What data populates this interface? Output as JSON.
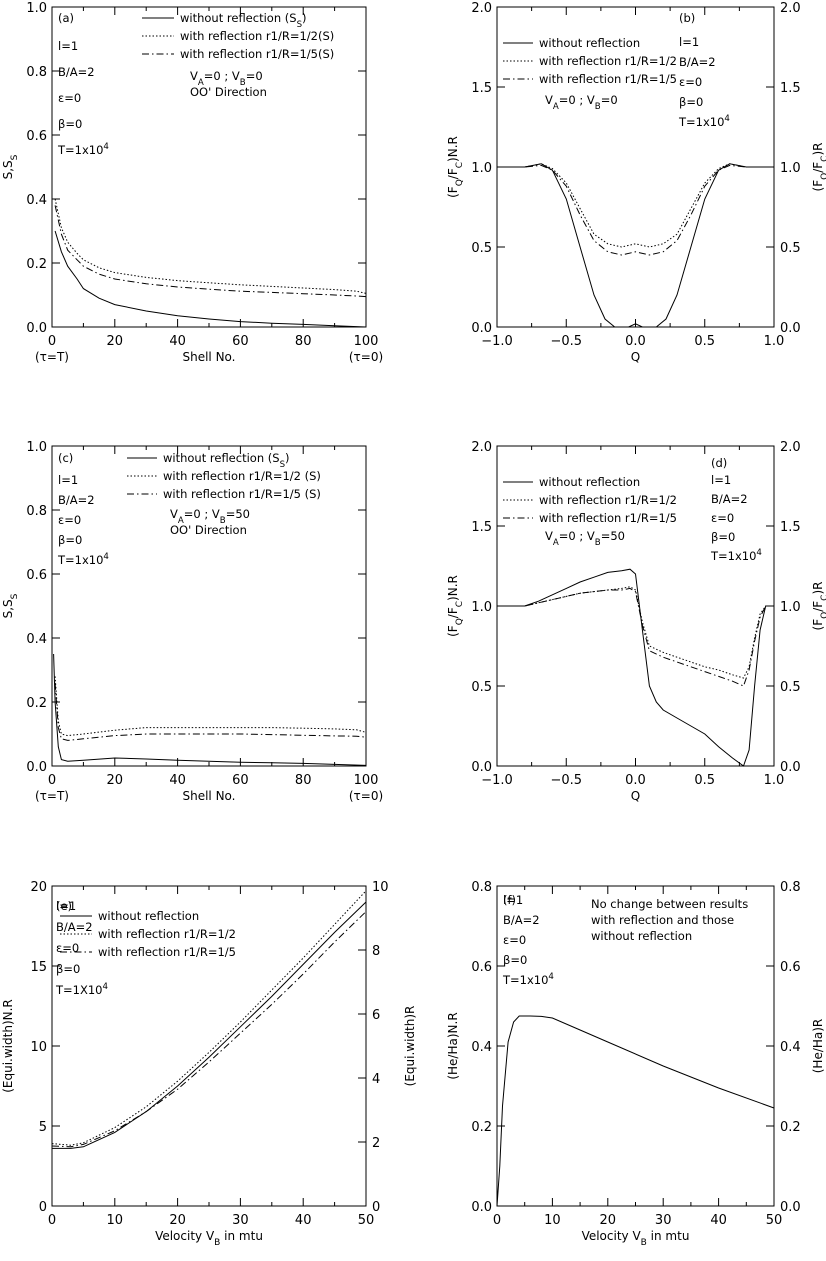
{
  "chart_data": [
    {
      "id": "a",
      "type": "line",
      "ylabel": "S,S_S",
      "xlabel": "Shell No.",
      "xlim": [
        0,
        100
      ],
      "ylim": [
        0,
        1.0
      ],
      "xticks": [
        0,
        20,
        40,
        60,
        80,
        100
      ],
      "xtick_labels": [
        "0",
        "20",
        "40",
        "60",
        "80",
        "100"
      ],
      "yticks": [
        0,
        0.2,
        0.4,
        0.6,
        0.8,
        1.0
      ],
      "ytick_labels": [
        "0.0",
        "0.2",
        "0.4",
        "0.6",
        "0.8",
        "1.0"
      ],
      "extra_labels": [
        {
          "x": 0,
          "text": "(τ=T)"
        },
        {
          "x": 100,
          "text": "(τ=0)"
        }
      ],
      "params": [
        "(a)",
        "l=1",
        "B/A=2",
        "ε=0",
        "β=0",
        "T=1x10⁴"
      ],
      "legend": [
        {
          "style": "solid",
          "text": "without reflection (S_S)"
        },
        {
          "style": "dotted",
          "text": "with reflection r1/R=1/2(S)"
        },
        {
          "style": "dashdot",
          "text": "with reflection r1/R=1/5(S)"
        }
      ],
      "notes": [
        "V_A=0 ; V_B=0",
        "OO' Direction"
      ],
      "series": [
        {
          "style": "solid",
          "x": [
            1,
            3,
            5,
            8,
            10,
            15,
            20,
            30,
            40,
            50,
            60,
            70,
            80,
            90,
            100
          ],
          "values": [
            0.3,
            0.235,
            0.19,
            0.15,
            0.12,
            0.09,
            0.07,
            0.05,
            0.035,
            0.025,
            0.017,
            0.012,
            0.008,
            0.004,
            0.0
          ]
        },
        {
          "style": "dotted",
          "x": [
            1,
            3,
            5,
            8,
            10,
            15,
            20,
            30,
            40,
            50,
            60,
            70,
            80,
            90,
            97,
            100
          ],
          "values": [
            0.4,
            0.31,
            0.265,
            0.23,
            0.21,
            0.185,
            0.17,
            0.155,
            0.145,
            0.138,
            0.132,
            0.127,
            0.122,
            0.117,
            0.112,
            0.105
          ]
        },
        {
          "style": "dashdot",
          "x": [
            1,
            3,
            5,
            8,
            10,
            15,
            20,
            30,
            40,
            50,
            60,
            70,
            80,
            90,
            97,
            100
          ],
          "values": [
            0.38,
            0.29,
            0.24,
            0.21,
            0.19,
            0.165,
            0.15,
            0.135,
            0.125,
            0.118,
            0.112,
            0.108,
            0.104,
            0.1,
            0.097,
            0.095
          ]
        }
      ]
    },
    {
      "id": "b",
      "type": "line",
      "ylabel": "(F_Q/F_C)N.R",
      "ylabel_right": "(F_Q/F_C)R",
      "xlabel": "Q",
      "xlim": [
        -1.0,
        1.0
      ],
      "ylim": [
        0,
        2.0
      ],
      "xticks": [
        -1.0,
        -0.5,
        0,
        0.5,
        1.0
      ],
      "xtick_labels": [
        "−1.0",
        "−0.5",
        "0.0",
        "0.5",
        "1.0"
      ],
      "yticks": [
        0,
        0.5,
        1.0,
        1.5,
        2.0
      ],
      "ytick_labels": [
        "0.0",
        "0.5",
        "1.0",
        "1.5",
        "2.0"
      ],
      "right_ytick_labels": [
        "0.0",
        "0.5",
        "1.0",
        "1.5",
        "2.0"
      ],
      "params": [
        "(b)",
        "l=1",
        "B/A=2",
        "ε=0",
        "β=0",
        "T=1x10⁴"
      ],
      "legend": [
        {
          "style": "solid",
          "text": "without reflection"
        },
        {
          "style": "dotted",
          "text": "with reflection r1/R=1/2"
        },
        {
          "style": "dashdot",
          "text": "with reflection r1/R=1/5"
        }
      ],
      "notes": [
        "V_A=0 ; V_B=0"
      ],
      "series": [
        {
          "style": "solid",
          "x": [
            -1,
            -0.8,
            -0.68,
            -0.6,
            -0.5,
            -0.4,
            -0.3,
            -0.22,
            -0.15,
            -0.05,
            0,
            0.05,
            0.15,
            0.22,
            0.3,
            0.4,
            0.5,
            0.6,
            0.68,
            0.8,
            1
          ],
          "values": [
            1,
            1.0,
            1.02,
            0.98,
            0.8,
            0.5,
            0.2,
            0.05,
            0.0,
            0.0,
            0.02,
            0.0,
            0.0,
            0.05,
            0.2,
            0.5,
            0.8,
            0.98,
            1.02,
            1.0,
            1
          ]
        },
        {
          "style": "dotted",
          "x": [
            -1,
            -0.8,
            -0.68,
            -0.6,
            -0.5,
            -0.4,
            -0.3,
            -0.2,
            -0.1,
            0,
            0.1,
            0.2,
            0.3,
            0.4,
            0.5,
            0.6,
            0.68,
            0.8,
            1
          ],
          "values": [
            1,
            1.0,
            1.02,
            0.99,
            0.9,
            0.74,
            0.58,
            0.52,
            0.5,
            0.52,
            0.5,
            0.52,
            0.58,
            0.74,
            0.9,
            0.99,
            1.02,
            1.0,
            1
          ]
        },
        {
          "style": "dashdot",
          "x": [
            -1,
            -0.8,
            -0.68,
            -0.6,
            -0.5,
            -0.4,
            -0.3,
            -0.2,
            -0.1,
            0,
            0.1,
            0.2,
            0.3,
            0.4,
            0.5,
            0.6,
            0.68,
            0.8,
            1
          ],
          "values": [
            1,
            1.0,
            1.01,
            0.98,
            0.88,
            0.7,
            0.54,
            0.47,
            0.45,
            0.47,
            0.45,
            0.47,
            0.54,
            0.7,
            0.88,
            0.98,
            1.01,
            1.0,
            1
          ]
        }
      ]
    },
    {
      "id": "c",
      "type": "line",
      "ylabel": "S,S_S",
      "xlabel": "Shell No.",
      "xlim": [
        0,
        100
      ],
      "ylim": [
        0,
        1.0
      ],
      "xticks": [
        0,
        20,
        40,
        60,
        80,
        100
      ],
      "xtick_labels": [
        "0",
        "20",
        "40",
        "60",
        "80",
        "100"
      ],
      "yticks": [
        0,
        0.2,
        0.4,
        0.6,
        0.8,
        1.0
      ],
      "ytick_labels": [
        "0.0",
        "0.2",
        "0.4",
        "0.6",
        "0.8",
        "1.0"
      ],
      "extra_labels": [
        {
          "x": 0,
          "text": "(τ=T)"
        },
        {
          "x": 100,
          "text": "(τ=0)"
        }
      ],
      "params": [
        "(c)",
        "l=1",
        "B/A=2",
        "ε=0",
        "β=0",
        "T=1x10⁴"
      ],
      "legend": [
        {
          "style": "solid",
          "text": "without reflection (S_S)"
        },
        {
          "style": "dotted",
          "text": "with reflection r1/R=1/2 (S)"
        },
        {
          "style": "dashdot",
          "text": "with reflection r1/R=1/5 (S)"
        }
      ],
      "notes": [
        "V_A=0 ; V_B=50",
        "OO' Direction"
      ],
      "series": [
        {
          "style": "solid",
          "x": [
            0.5,
            1,
            2,
            3,
            5,
            10,
            20,
            30,
            40,
            50,
            60,
            70,
            80,
            90,
            100
          ],
          "values": [
            0.35,
            0.2,
            0.06,
            0.02,
            0.015,
            0.018,
            0.025,
            0.022,
            0.018,
            0.015,
            0.012,
            0.01,
            0.008,
            0.005,
            0.002
          ]
        },
        {
          "style": "dotted",
          "x": [
            1,
            2,
            3,
            5,
            10,
            20,
            30,
            40,
            50,
            60,
            70,
            80,
            90,
            97,
            100
          ],
          "values": [
            0.28,
            0.14,
            0.1,
            0.095,
            0.1,
            0.112,
            0.12,
            0.12,
            0.12,
            0.12,
            0.12,
            0.118,
            0.116,
            0.113,
            0.105
          ]
        },
        {
          "style": "dashdot",
          "x": [
            1,
            2,
            3,
            5,
            10,
            20,
            30,
            40,
            50,
            60,
            70,
            80,
            90,
            97,
            100
          ],
          "values": [
            0.26,
            0.12,
            0.085,
            0.08,
            0.085,
            0.095,
            0.1,
            0.1,
            0.1,
            0.1,
            0.098,
            0.096,
            0.094,
            0.093,
            0.09
          ]
        }
      ]
    },
    {
      "id": "d",
      "type": "line",
      "ylabel": "(F_Q/F_C)N.R",
      "ylabel_right": "(F_Q/F_C)R",
      "xlabel": "Q",
      "xlim": [
        -1.0,
        1.0
      ],
      "ylim": [
        0,
        2.0
      ],
      "xticks": [
        -1.0,
        -0.5,
        0,
        0.5,
        1.0
      ],
      "xtick_labels": [
        "−1.0",
        "−0.5",
        "0.0",
        "0.5",
        "1.0"
      ],
      "yticks": [
        0,
        0.5,
        1.0,
        1.5,
        2.0
      ],
      "ytick_labels": [
        "0.0",
        "0.5",
        "1.0",
        "1.5",
        "2.0"
      ],
      "right_ytick_labels": [
        "0.0",
        "0.5",
        "1.0",
        "1.5",
        "2.0"
      ],
      "params": [
        "(d)",
        "l=1",
        "B/A=2",
        "ε=0",
        "β=0",
        "T=1x10⁴"
      ],
      "legend": [
        {
          "style": "solid",
          "text": "without reflection"
        },
        {
          "style": "dotted",
          "text": "with reflection r1/R=1/2"
        },
        {
          "style": "dashdot",
          "text": "with reflection r1/R=1/5"
        }
      ],
      "notes": [
        "V_A=0 ; V_B=50"
      ],
      "series": [
        {
          "style": "solid",
          "x": [
            -1,
            -0.8,
            -0.7,
            -0.6,
            -0.5,
            -0.4,
            -0.3,
            -0.2,
            -0.1,
            -0.04,
            0,
            0.05,
            0.1,
            0.15,
            0.2,
            0.3,
            0.4,
            0.5,
            0.6,
            0.7,
            0.78,
            0.82,
            0.86,
            0.9,
            0.94,
            1
          ],
          "values": [
            1,
            1,
            1.03,
            1.07,
            1.11,
            1.15,
            1.18,
            1.21,
            1.22,
            1.23,
            1.2,
            0.85,
            0.5,
            0.4,
            0.35,
            0.3,
            0.25,
            0.2,
            0.12,
            0.05,
            0.0,
            0.1,
            0.5,
            0.85,
            1.0,
            1.0
          ]
        },
        {
          "style": "dotted",
          "x": [
            -1,
            -0.8,
            -0.7,
            -0.6,
            -0.5,
            -0.4,
            -0.3,
            -0.2,
            -0.1,
            -0.04,
            0,
            0.05,
            0.1,
            0.2,
            0.3,
            0.4,
            0.5,
            0.6,
            0.7,
            0.78,
            0.82,
            0.86,
            0.9,
            0.94,
            1
          ],
          "values": [
            1,
            1,
            1.02,
            1.04,
            1.06,
            1.08,
            1.09,
            1.1,
            1.11,
            1.12,
            1.1,
            0.9,
            0.75,
            0.71,
            0.68,
            0.65,
            0.62,
            0.6,
            0.57,
            0.55,
            0.62,
            0.8,
            0.95,
            1.0,
            1.0
          ]
        },
        {
          "style": "dashdot",
          "x": [
            -1,
            -0.8,
            -0.7,
            -0.6,
            -0.5,
            -0.4,
            -0.3,
            -0.2,
            -0.1,
            -0.04,
            0,
            0.05,
            0.1,
            0.2,
            0.3,
            0.4,
            0.5,
            0.6,
            0.7,
            0.78,
            0.82,
            0.86,
            0.9,
            0.94,
            1
          ],
          "values": [
            1,
            1,
            1.02,
            1.04,
            1.06,
            1.08,
            1.09,
            1.1,
            1.1,
            1.11,
            1.09,
            0.88,
            0.72,
            0.68,
            0.65,
            0.62,
            0.59,
            0.56,
            0.53,
            0.5,
            0.6,
            0.78,
            0.93,
            1.0,
            1.0
          ]
        }
      ]
    },
    {
      "id": "e",
      "type": "line",
      "ylabel": "(Equi.width)N.R",
      "ylabel_right": "(Equi.width)R",
      "xlabel": "Velocity V_B in mtu",
      "xlim": [
        0,
        50
      ],
      "ylim": [
        0,
        20
      ],
      "xticks": [
        0,
        10,
        20,
        30,
        40,
        50
      ],
      "xtick_labels": [
        "0",
        "10",
        "20",
        "30",
        "40",
        "50"
      ],
      "yticks": [
        0,
        5,
        10,
        15,
        20
      ],
      "ytick_labels": [
        "0",
        "5",
        "10",
        "15",
        "20"
      ],
      "right_yticks": [
        0,
        2,
        4,
        6,
        8,
        10
      ],
      "right_ytick_labels": [
        "0",
        "2",
        "4",
        "6",
        "8",
        "10"
      ],
      "params": [
        "(e)",
        "l=1",
        "B/A=2",
        "ε=0",
        "β=0",
        "T=1X10⁴"
      ],
      "legend": [
        {
          "style": "solid",
          "text": "without reflection"
        },
        {
          "style": "dotted",
          "text": "with reflection r1/R=1/2"
        },
        {
          "style": "dashdot",
          "text": "with reflection r1/R=1/5"
        }
      ],
      "notes": [],
      "series": [
        {
          "style": "solid",
          "x": [
            0,
            3,
            5,
            10,
            15,
            20,
            25,
            30,
            35,
            40,
            45,
            50
          ],
          "values": [
            3.6,
            3.6,
            3.7,
            4.6,
            5.9,
            7.5,
            9.3,
            11.2,
            13.1,
            15.1,
            17.1,
            19.0
          ]
        },
        {
          "style": "dotted",
          "x": [
            0,
            3,
            5,
            10,
            15,
            20,
            25,
            30,
            35,
            40,
            45,
            50
          ],
          "values": [
            3.9,
            3.8,
            3.95,
            4.9,
            6.2,
            7.8,
            9.6,
            11.5,
            13.5,
            15.5,
            17.6,
            19.7
          ]
        },
        {
          "style": "dashdot",
          "x": [
            0,
            3,
            5,
            10,
            15,
            20,
            25,
            30,
            35,
            40,
            45,
            50
          ],
          "values": [
            3.75,
            3.7,
            3.85,
            4.7,
            5.9,
            7.3,
            9.0,
            10.8,
            12.6,
            14.5,
            16.5,
            18.4
          ]
        }
      ]
    },
    {
      "id": "f",
      "type": "line",
      "ylabel": "(He/Ha)N.R",
      "ylabel_right": "(He/Ha)R",
      "xlabel": "Velocity V_B in mtu",
      "xlim": [
        0,
        50
      ],
      "ylim": [
        0,
        0.8
      ],
      "xticks": [
        0,
        10,
        20,
        30,
        40,
        50
      ],
      "xtick_labels": [
        "0",
        "10",
        "20",
        "30",
        "40",
        "50"
      ],
      "yticks": [
        0,
        0.2,
        0.4,
        0.6,
        0.8
      ],
      "ytick_labels": [
        "0.0",
        "0.2",
        "0.4",
        "0.6",
        "0.8"
      ],
      "right_ytick_labels": [
        "0.0",
        "0.2",
        "0.4",
        "0.6",
        "0.8"
      ],
      "params": [
        "(f)",
        "l=1",
        "B/A=2",
        "ε=0",
        "β=0",
        "T=1x10⁴"
      ],
      "legend": [],
      "notes": [
        "No change between results",
        "with reflection and those",
        "without reflection"
      ],
      "series": [
        {
          "style": "solid",
          "x": [
            0,
            0.5,
            1,
            2,
            3,
            4,
            6,
            8,
            10,
            15,
            20,
            30,
            40,
            50
          ],
          "values": [
            0.0,
            0.1,
            0.25,
            0.41,
            0.46,
            0.475,
            0.475,
            0.474,
            0.47,
            0.44,
            0.41,
            0.35,
            0.295,
            0.245
          ]
        }
      ]
    }
  ]
}
